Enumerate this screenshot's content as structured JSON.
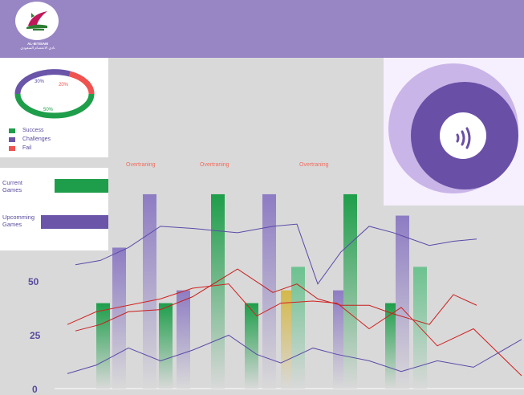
{
  "header": {
    "brand_line1": "AL-IETISAM",
    "brand_line2": "نادي الاعتصام السعودي"
  },
  "performance_donut": {
    "labels": {
      "challenges": "30%",
      "fail": "20%",
      "success": "50%"
    },
    "legend": [
      {
        "name": "Success",
        "color": "#1e9e4a"
      },
      {
        "name": "Challenges",
        "color": "#6a55a8"
      },
      {
        "name": "Fail",
        "color": "#f0524f"
      }
    ]
  },
  "games": {
    "current_label_1": "Current",
    "current_label_2": "Games",
    "upcoming_label_1": "Upcomming",
    "upcoming_label_2": "Games",
    "colors": {
      "current": "#1e9e4a",
      "upcoming": "#6a55a8"
    }
  },
  "voice_widget": {
    "icon": "sound-waves-icon"
  },
  "chart_data": {
    "type": "bar",
    "y_ticks": [
      "0",
      "25",
      "50"
    ],
    "ylim": [
      0,
      100
    ],
    "annotations": [
      "Overtraning",
      "Overtraning",
      "Overtraning"
    ],
    "bars": [
      {
        "value": 40,
        "color": "green"
      },
      {
        "value": 66,
        "color": "purple"
      },
      {
        "value": 91,
        "color": "purple"
      },
      {
        "value": 40,
        "color": "green"
      },
      {
        "value": 46,
        "color": "purple"
      },
      {
        "value": 91,
        "color": "green"
      },
      {
        "value": 40,
        "color": "green"
      },
      {
        "value": 91,
        "color": "purple"
      },
      {
        "value": 46,
        "color": "yellow"
      },
      {
        "value": 57,
        "color": "lightgreen"
      },
      {
        "value": 46,
        "color": "purple"
      },
      {
        "value": 91,
        "color": "green"
      },
      {
        "value": 40,
        "color": "green"
      },
      {
        "value": 81,
        "color": "purple"
      },
      {
        "value": 57,
        "color": "lightgreen"
      }
    ],
    "series": [
      {
        "color": "#5a4aa8",
        "values": [
          58,
          60,
          66,
          76,
          75,
          73,
          76,
          77,
          49,
          64,
          76,
          73,
          67,
          69,
          70
        ]
      },
      {
        "color": "#c71e1e",
        "values": [
          27,
          30,
          36,
          37,
          43,
          56,
          45,
          49,
          42,
          39,
          39,
          35,
          30,
          44,
          39
        ]
      },
      {
        "color": "#d3201f",
        "values": [
          30,
          36,
          39,
          42,
          47,
          49,
          34,
          40,
          41,
          40,
          28,
          38,
          20,
          28,
          6
        ]
      },
      {
        "color": "#5a4aa8",
        "values": [
          7,
          11,
          19,
          13,
          18,
          25,
          16,
          12,
          19,
          16,
          13,
          8,
          13,
          10,
          23
        ]
      }
    ]
  }
}
